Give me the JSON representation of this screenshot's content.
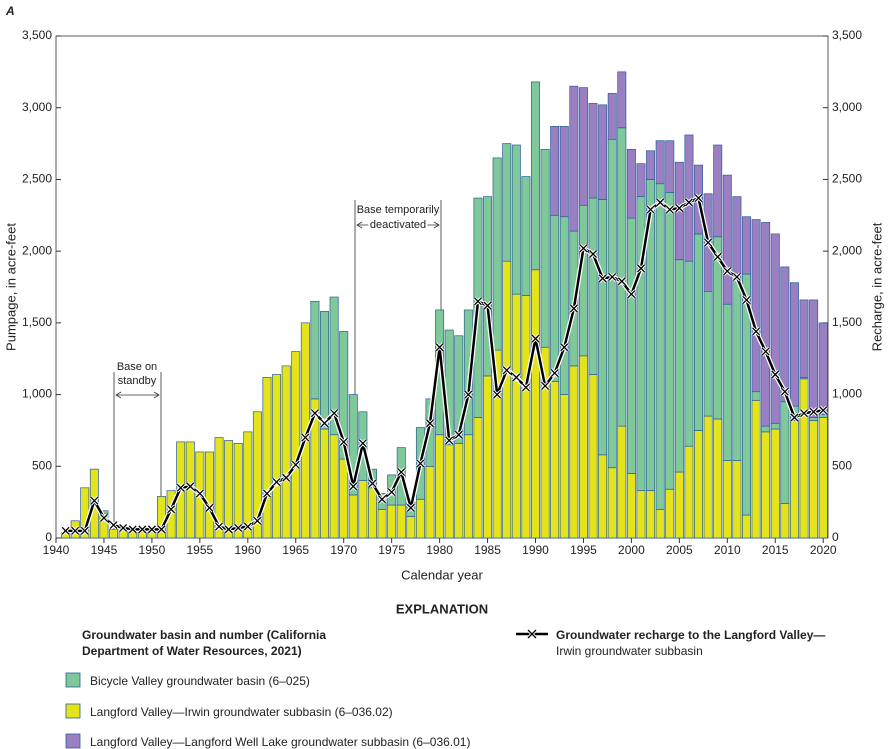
{
  "chart_data": {
    "type": "bar",
    "panel": "A",
    "x_label": "Calendar year",
    "y_label": "Pumpage, in acre-feet",
    "y2_label": "Recharge, in acre-feet",
    "legend_title": "EXPLANATION",
    "legend_heading": "Groundwater basin and number (California Department of Water Resources, 2021)",
    "annotations": [
      [
        "Base on",
        "standby"
      ],
      [
        "Base temporarily",
        "deactivated"
      ]
    ],
    "stacked": true,
    "x": [
      1941,
      1942,
      1943,
      1944,
      1945,
      1946,
      1947,
      1948,
      1949,
      1950,
      1951,
      1952,
      1953,
      1954,
      1955,
      1956,
      1957,
      1958,
      1959,
      1960,
      1961,
      1962,
      1963,
      1964,
      1965,
      1966,
      1967,
      1968,
      1969,
      1970,
      1971,
      1972,
      1973,
      1974,
      1975,
      1976,
      1977,
      1978,
      1979,
      1980,
      1981,
      1982,
      1983,
      1984,
      1985,
      1986,
      1987,
      1988,
      1989,
      1990,
      1991,
      1992,
      1993,
      1994,
      1995,
      1996,
      1997,
      1998,
      1999,
      2000,
      2001,
      2002,
      2003,
      2004,
      2005,
      2006,
      2007,
      2008,
      2009,
      2010,
      2011,
      2012,
      2013,
      2014,
      2015,
      2016,
      2017,
      2018,
      2019,
      2020
    ],
    "xlim": [
      1940,
      2020.5
    ],
    "xticks": [
      1940,
      1945,
      1950,
      1955,
      1960,
      1965,
      1970,
      1975,
      1980,
      1985,
      1990,
      1995,
      2000,
      2005,
      2010,
      2015,
      2020
    ],
    "ylim": [
      0,
      3500
    ],
    "yticks": [
      0,
      500,
      {
        "value": 1000,
        "label": "1,000"
      },
      {
        "value": 1500,
        "label": "1,500"
      },
      {
        "value": 2000,
        "label": "2,000"
      },
      {
        "value": 2500,
        "label": "2,500"
      },
      {
        "value": 3000,
        "label": "3,000"
      },
      {
        "value": 3500,
        "label": "3,500"
      }
    ],
    "y2lim": [
      0,
      3500
    ],
    "y2ticks": [
      0,
      500,
      {
        "value": 1000,
        "label": "1,000"
      },
      {
        "value": 1500,
        "label": "1,500"
      },
      {
        "value": 2000,
        "label": "2,000"
      },
      {
        "value": 2500,
        "label": "2,500"
      },
      {
        "value": 3000,
        "label": "3,000"
      },
      {
        "value": 3500,
        "label": "3,500"
      }
    ],
    "bar_edge_color": "#2a5d9a",
    "series": [
      {
        "name": "Langford Valley—Irwin groundwater subbasin (6–036.02)",
        "color": "#e4e41c",
        "values": [
          40,
          120,
          350,
          480,
          170,
          60,
          60,
          50,
          50,
          50,
          290,
          330,
          670,
          670,
          600,
          600,
          700,
          680,
          660,
          740,
          880,
          1120,
          1140,
          1200,
          1300,
          1500,
          970,
          760,
          720,
          550,
          300,
          400,
          350,
          200,
          230,
          230,
          150,
          270,
          500,
          720,
          650,
          660,
          720,
          840,
          1130,
          1310,
          1930,
          1700,
          1690,
          1870,
          1330,
          1090,
          1000,
          1200,
          1270,
          1140,
          580,
          490,
          780,
          450,
          330,
          330,
          200,
          340,
          460,
          640,
          750,
          850,
          830,
          540,
          540,
          160,
          960,
          740,
          760,
          240,
          820,
          1110,
          820,
          840
        ]
      },
      {
        "name": "Bicycle Valley groundwater basin (6–025)",
        "color": "#7fc89a",
        "values": [
          0,
          0,
          0,
          0,
          20,
          0,
          0,
          0,
          0,
          0,
          0,
          0,
          0,
          0,
          0,
          0,
          0,
          0,
          0,
          0,
          0,
          0,
          0,
          0,
          0,
          0,
          680,
          820,
          960,
          890,
          700,
          480,
          130,
          110,
          210,
          400,
          100,
          500,
          470,
          870,
          800,
          750,
          870,
          1530,
          1250,
          1340,
          820,
          1040,
          830,
          1310,
          1380,
          1160,
          1240,
          940,
          1050,
          1230,
          1780,
          2290,
          2080,
          1780,
          2050,
          2170,
          2270,
          2070,
          1480,
          1290,
          1370,
          870,
          1270,
          1090,
          1270,
          1680,
          60,
          40,
          40,
          710,
          100,
          10,
          20,
          20
        ]
      },
      {
        "name": "Langford Valley—Langford Well Lake groundwater subbasin (6–036.01)",
        "color": "#9a80c2",
        "values": [
          0,
          0,
          0,
          0,
          0,
          0,
          0,
          0,
          0,
          0,
          0,
          0,
          0,
          0,
          0,
          0,
          0,
          0,
          0,
          0,
          0,
          0,
          0,
          0,
          0,
          0,
          0,
          0,
          0,
          0,
          0,
          0,
          0,
          0,
          0,
          0,
          0,
          0,
          0,
          0,
          0,
          0,
          0,
          0,
          0,
          0,
          0,
          0,
          0,
          0,
          0,
          620,
          630,
          1010,
          820,
          660,
          660,
          320,
          390,
          480,
          230,
          200,
          300,
          360,
          680,
          880,
          480,
          680,
          640,
          900,
          570,
          400,
          1200,
          1420,
          1320,
          940,
          860,
          540,
          820,
          640
        ]
      },
      {
        "name": "Groundwater recharge to the Langford Valley—Irwin groundwater subbasin",
        "color": "#000000",
        "type": "line",
        "axis": "y2",
        "values": [
          50,
          50,
          50,
          260,
          140,
          90,
          70,
          60,
          60,
          60,
          60,
          200,
          350,
          360,
          310,
          210,
          80,
          60,
          70,
          80,
          120,
          310,
          390,
          420,
          510,
          700,
          870,
          800,
          870,
          670,
          360,
          660,
          380,
          270,
          320,
          460,
          210,
          520,
          800,
          1330,
          680,
          720,
          1000,
          1650,
          1620,
          1000,
          1170,
          1120,
          1050,
          1390,
          1060,
          1150,
          1330,
          1600,
          2020,
          1980,
          1810,
          1820,
          1790,
          1700,
          1880,
          2290,
          2340,
          2290,
          2300,
          2340,
          2370,
          2060,
          1960,
          1860,
          1820,
          1660,
          1440,
          1300,
          1140,
          1020,
          840,
          870,
          880,
          890
        ]
      }
    ]
  }
}
